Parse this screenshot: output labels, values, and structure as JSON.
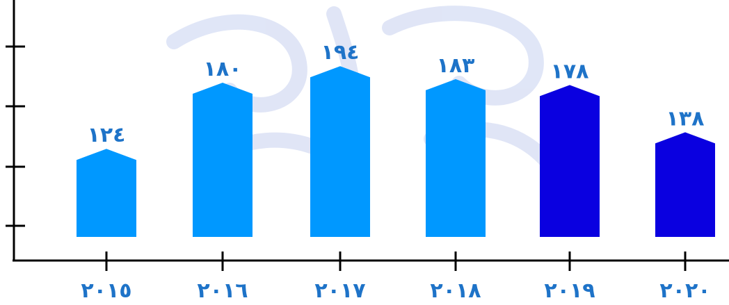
{
  "chart_data": {
    "type": "bar",
    "categories": [
      "٢٠١٥",
      "٢٠١٦",
      "٢٠١٧",
      "٢٠١٨",
      "٢٠١٩",
      "٢٠٢٠"
    ],
    "values": [
      124,
      180,
      194,
      183,
      178,
      138
    ],
    "value_labels": [
      "١٢٤",
      "١٨٠",
      "١٩٤",
      "١٨٣",
      "١٧٨",
      "١٣٨"
    ],
    "bar_colors": [
      "#0098ff",
      "#0098ff",
      "#0098ff",
      "#0098ff",
      "#0a00e0",
      "#0a00e0"
    ],
    "y_ticks_count": 4,
    "title": "",
    "xlabel": "",
    "ylabel": "",
    "grid": false
  },
  "colors": {
    "axis": "#000000",
    "label_color": "#1e73c8",
    "watermark": "#c9d3f0"
  },
  "watermark_icon": "calligraphy-watermark"
}
